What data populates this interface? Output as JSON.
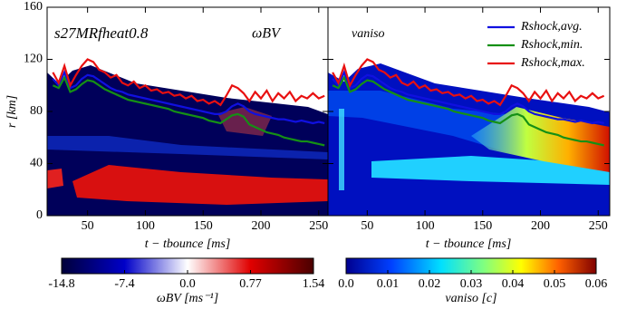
{
  "chart_data": [
    {
      "type": "line",
      "annotations": [
        "s27MRfheat0.8",
        "ωBV"
      ],
      "xlabel": "t − tbounce [ms]",
      "ylabel": "r [km]",
      "xlim": [
        15,
        258
      ],
      "ylim": [
        0,
        160
      ],
      "xticks": [
        50,
        100,
        150,
        200,
        250
      ],
      "yticks": [
        0,
        40,
        80,
        120,
        160
      ],
      "show_ytick_labels": true,
      "x": [
        20,
        25,
        30,
        35,
        40,
        45,
        50,
        55,
        60,
        65,
        70,
        75,
        80,
        85,
        90,
        95,
        100,
        105,
        110,
        115,
        120,
        125,
        130,
        135,
        140,
        145,
        150,
        155,
        160,
        165,
        170,
        175,
        180,
        185,
        190,
        195,
        200,
        205,
        210,
        215,
        220,
        225,
        230,
        235,
        240,
        245,
        250,
        255
      ],
      "series": [
        {
          "name": "Rshock,avg.",
          "color": "#1010e0",
          "values": [
            105,
            100,
            110,
            98,
            100,
            105,
            108,
            107,
            104,
            101,
            98,
            96,
            95,
            93,
            92,
            91,
            90,
            89,
            88,
            87,
            86,
            85,
            84,
            83,
            82,
            81,
            80,
            79,
            78,
            78,
            80,
            84,
            86,
            84,
            80,
            78,
            77,
            76,
            75,
            74,
            74,
            73,
            72,
            73,
            72,
            71,
            72,
            71
          ]
        },
        {
          "name": "Rshock,min.",
          "color": "#159015",
          "values": [
            100,
            98,
            106,
            95,
            97,
            101,
            104,
            103,
            100,
            97,
            95,
            93,
            91,
            89,
            88,
            87,
            86,
            85,
            84,
            83,
            82,
            80,
            79,
            78,
            77,
            76,
            75,
            73,
            72,
            71,
            74,
            77,
            78,
            76,
            70,
            68,
            66,
            64,
            63,
            62,
            60,
            59,
            58,
            57,
            57,
            56,
            55,
            54
          ]
        },
        {
          "name": "Rshock,max.",
          "color": "#e81010",
          "values": [
            110,
            102,
            115,
            100,
            108,
            115,
            120,
            118,
            112,
            110,
            106,
            108,
            102,
            100,
            103,
            98,
            100,
            96,
            97,
            94,
            95,
            92,
            93,
            90,
            92,
            88,
            89,
            86,
            88,
            85,
            92,
            100,
            98,
            94,
            88,
            95,
            90,
            96,
            88,
            94,
            90,
            95,
            88,
            92,
            90,
            94,
            90,
            92
          ]
        }
      ],
      "colorbar": {
        "label": "ωBV [ms⁻¹]",
        "lim": [
          -14.8,
          1.54
        ],
        "diverging": true,
        "ticks": [
          -14.8,
          -7.4,
          {
            "value": 0,
            "label": "0.0"
          },
          0.77,
          1.54
        ]
      }
    },
    {
      "type": "line",
      "annotations": [
        "vaniso"
      ],
      "xlabel": "t − tbounce [ms]",
      "legend": "upper right",
      "xlim": [
        16,
        260
      ],
      "ylim": [
        0,
        160
      ],
      "xticks": [
        50,
        100,
        150,
        200,
        250
      ],
      "yticks": [
        0,
        40,
        80,
        120,
        160
      ],
      "show_ytick_labels": false,
      "x": [
        20,
        25,
        30,
        35,
        40,
        45,
        50,
        55,
        60,
        65,
        70,
        75,
        80,
        85,
        90,
        95,
        100,
        105,
        110,
        115,
        120,
        125,
        130,
        135,
        140,
        145,
        150,
        155,
        160,
        165,
        170,
        175,
        180,
        185,
        190,
        195,
        200,
        205,
        210,
        215,
        220,
        225,
        230,
        235,
        240,
        245,
        250,
        255
      ],
      "series": [
        {
          "name": "Rshock,avg.",
          "color": "#1010e0",
          "values": [
            105,
            100,
            110,
            98,
            100,
            105,
            108,
            107,
            104,
            101,
            98,
            96,
            95,
            93,
            92,
            91,
            90,
            89,
            88,
            87,
            86,
            85,
            84,
            83,
            82,
            81,
            80,
            79,
            78,
            78,
            80,
            84,
            86,
            84,
            80,
            78,
            77,
            76,
            75,
            74,
            74,
            73,
            72,
            73,
            72,
            71,
            72,
            71
          ]
        },
        {
          "name": "Rshock,min.",
          "color": "#159015",
          "values": [
            100,
            98,
            106,
            95,
            97,
            101,
            104,
            103,
            100,
            97,
            95,
            93,
            91,
            89,
            88,
            87,
            86,
            85,
            84,
            83,
            82,
            80,
            79,
            78,
            77,
            76,
            75,
            73,
            72,
            71,
            74,
            77,
            78,
            76,
            70,
            68,
            66,
            64,
            63,
            62,
            60,
            59,
            58,
            57,
            57,
            56,
            55,
            54
          ]
        },
        {
          "name": "Rshock,max.",
          "color": "#e81010",
          "values": [
            110,
            102,
            115,
            100,
            108,
            115,
            120,
            118,
            112,
            110,
            106,
            108,
            102,
            100,
            103,
            98,
            100,
            96,
            97,
            94,
            95,
            92,
            93,
            90,
            92,
            88,
            89,
            86,
            88,
            85,
            92,
            100,
            98,
            94,
            88,
            95,
            90,
            96,
            88,
            94,
            90,
            95,
            88,
            92,
            90,
            94,
            90,
            92
          ]
        }
      ],
      "colorbar": {
        "label": "vaniso [c]",
        "lim": [
          0,
          0.06
        ],
        "diverging": false,
        "ticks": [
          {
            "value": 0,
            "label": "0.0"
          },
          0.01,
          0.02,
          0.03,
          0.04,
          0.05,
          0.06
        ]
      }
    }
  ]
}
